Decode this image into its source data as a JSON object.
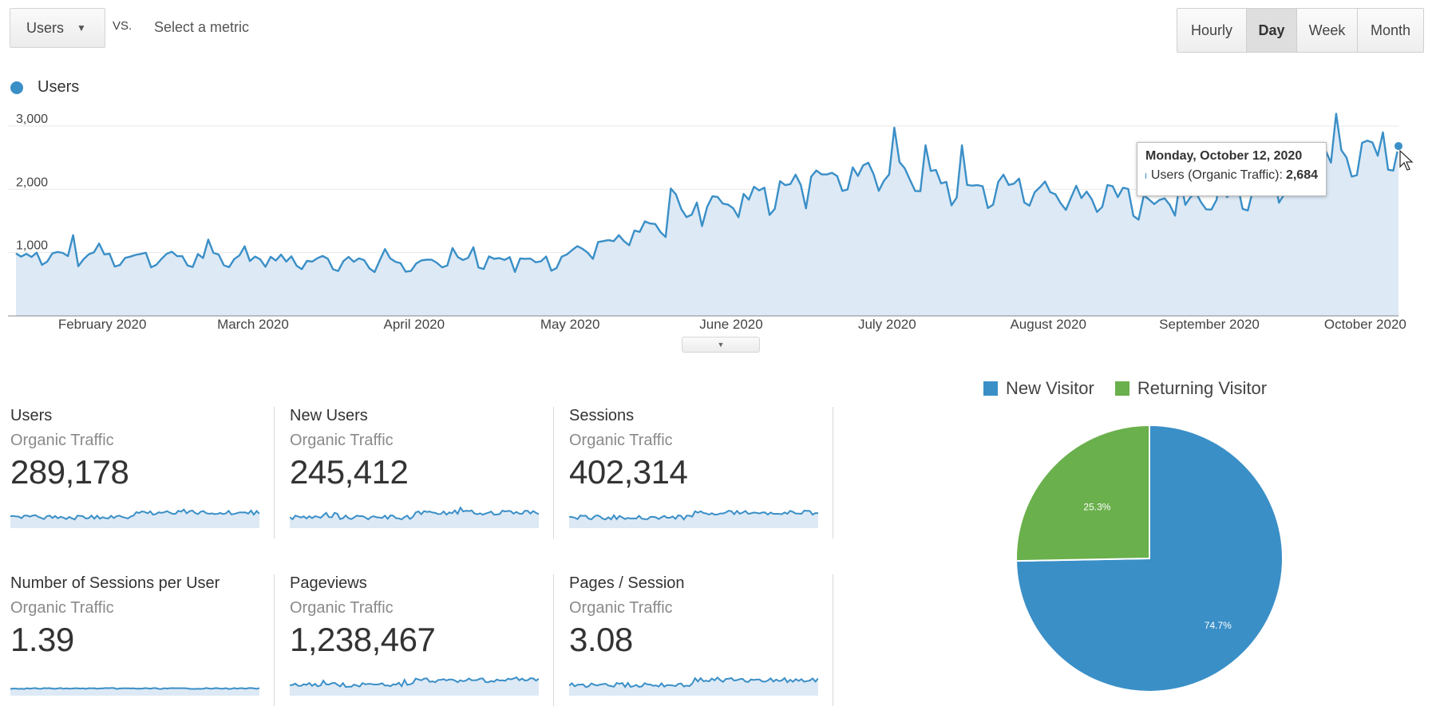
{
  "toolbar": {
    "metric": "Users",
    "vs": "VS.",
    "select_metric": "Select a metric",
    "periods": [
      "Hourly",
      "Day",
      "Week",
      "Month"
    ],
    "active_period": "Day"
  },
  "colors": {
    "line": "#3a8fc7",
    "area": "#dde9f5",
    "new_visitor": "#3a8fc7",
    "returning_visitor": "#6ab04c"
  },
  "tooltip": {
    "title": "Monday, October 12, 2020",
    "label": "Users (Organic Traffic):",
    "value": "2,684"
  },
  "kpis": [
    {
      "title": "Users",
      "subtitle": "Organic Traffic",
      "value": "289,178"
    },
    {
      "title": "New Users",
      "subtitle": "Organic Traffic",
      "value": "245,412"
    },
    {
      "title": "Sessions",
      "subtitle": "Organic Traffic",
      "value": "402,314"
    },
    {
      "title": "Number of Sessions per User",
      "subtitle": "Organic Traffic",
      "value": "1.39"
    },
    {
      "title": "Pageviews",
      "subtitle": "Organic Traffic",
      "value": "1,238,467"
    },
    {
      "title": "Pages / Session",
      "subtitle": "Organic Traffic",
      "value": "3.08"
    }
  ],
  "chart_data": [
    {
      "type": "area",
      "series": [
        {
          "name": "Users",
          "x": [
            "Feb 1 2020",
            "Mar 1 2020",
            "Apr 1 2020",
            "May 1 2020",
            "Jun 1 2020",
            "Jul 1 2020",
            "Aug 1 2020",
            "Sep 1 2020",
            "Oct 12 2020"
          ],
          "values": [
            950,
            900,
            850,
            850,
            1700,
            2300,
            2000,
            1750,
            2684
          ]
        }
      ],
      "x_tick_labels": [
        "February 2020",
        "March 2020",
        "April 2020",
        "May 2020",
        "June 2020",
        "July 2020",
        "August 2020",
        "September 2020",
        "October 2020"
      ],
      "y_tick_labels": [
        "1,000",
        "2,000",
        "3,000"
      ],
      "ylim": [
        0,
        3000
      ],
      "legend": "top-left",
      "grid": true
    },
    {
      "type": "pie",
      "categories": [
        "New Visitor",
        "Returning Visitor"
      ],
      "values": [
        74.7,
        25.3
      ],
      "slice_labels": [
        "74.7%",
        "25.3%"
      ],
      "legend": "top"
    }
  ]
}
